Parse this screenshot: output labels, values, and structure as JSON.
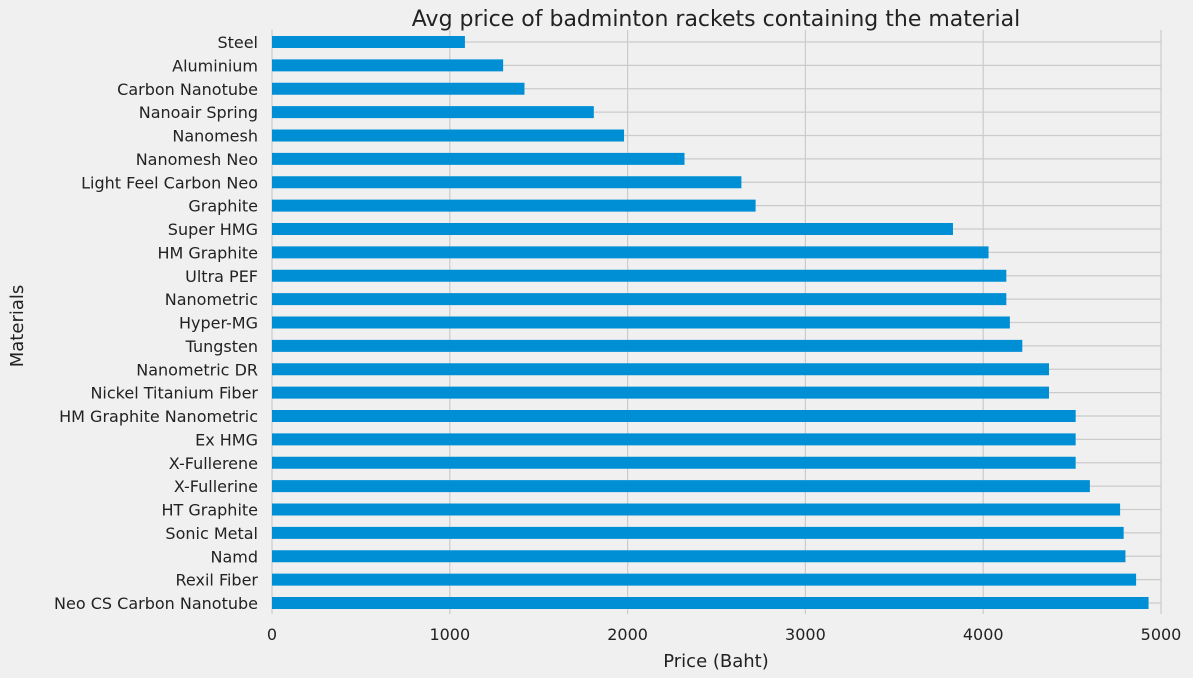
{
  "chart_data": {
    "type": "bar",
    "orientation": "horizontal",
    "title": "Avg price of badminton rackets containing the material",
    "xlabel": "Price (Baht)",
    "ylabel": "Materials",
    "xlim": [
      0,
      5000
    ],
    "xticks": [
      0,
      1000,
      2000,
      3000,
      4000,
      5000
    ],
    "grid": true,
    "bar_color": "#008fd5",
    "categories": [
      "Steel",
      "Aluminium",
      "Carbon Nanotube",
      "Nanoair Spring",
      "Nanomesh",
      "Nanomesh Neo",
      "Light Feel Carbon Neo",
      "Graphite",
      "Super HMG",
      "HM Graphite",
      "Ultra PEF",
      "Nanometric",
      "Hyper-MG",
      "Tungsten",
      "Nanometric DR",
      "Nickel Titanium Fiber",
      "HM Graphite Nanometric",
      "Ex HMG",
      "X-Fullerene",
      "X-Fullerine",
      "HT Graphite",
      "Sonic Metal",
      "Namd",
      "Rexil Fiber",
      "Neo CS Carbon Nanotube"
    ],
    "values": [
      1085,
      1300,
      1420,
      1810,
      1980,
      2320,
      2640,
      2720,
      3830,
      4030,
      4130,
      4130,
      4150,
      4220,
      4370,
      4370,
      4520,
      4520,
      4520,
      4600,
      4770,
      4790,
      4800,
      4860,
      4930
    ]
  }
}
